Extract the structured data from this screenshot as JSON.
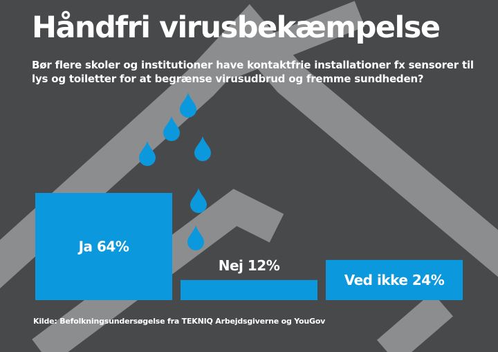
{
  "title": "Håndfri virusbekæmpelse",
  "subtitle": "Bør flere skoler og institutioner have kontaktfrie installationer fx sensorer til lys og toiletter for at begrænse virusudbrud og fremme sundheden?",
  "source": "Kilde: Befolkningsundersøgelse fra TEKNIQ Arbejdsgiverne og YouGov",
  "colors": {
    "background": "#48494b",
    "faucet": "#8c8d8e",
    "bar": "#0b98dc",
    "drop": "#0b98dc",
    "text": "#ffffff"
  },
  "decoration": {
    "faucet_icon": "faucet-icon",
    "drop_icon": "water-drop-icon",
    "drop_count": 6
  },
  "chart_data": {
    "type": "bar",
    "categories": [
      "Ja",
      "Nej",
      "Ved ikke"
    ],
    "values": [
      64,
      12,
      24
    ],
    "unit": "%",
    "data_labels": [
      "Ja 64%",
      "Nej 12%",
      "Ved ikke 24%"
    ],
    "ylim": [
      0,
      64
    ],
    "grid": false,
    "legend": "none"
  }
}
